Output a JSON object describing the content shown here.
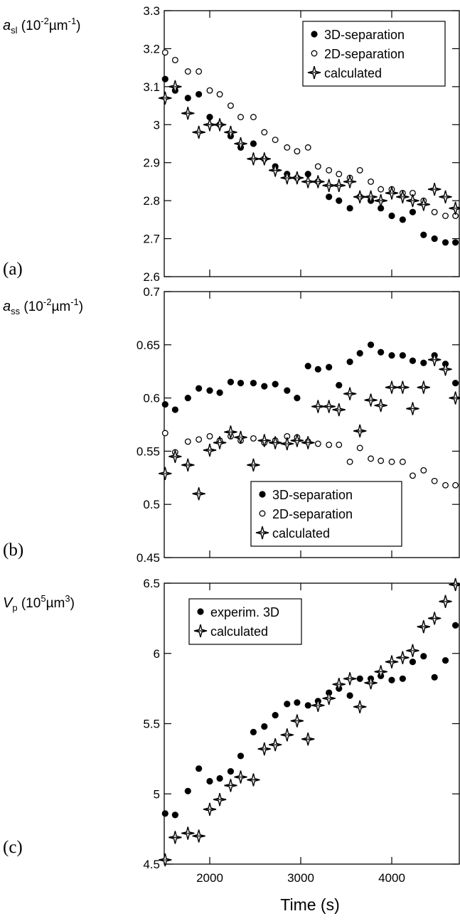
{
  "xlabel": "Time (s)",
  "x_ticks": [
    2000,
    3000,
    4000
  ],
  "xlim": [
    1500,
    4750
  ],
  "colors": {
    "ink": "#000000",
    "open_fill": "#ffffff"
  },
  "chart_data": [
    {
      "type": "scatter",
      "panel_label": "(a)",
      "ylabel": {
        "var": "a",
        "sub": "sl",
        "unit_pre": "(10",
        "unit_exp": "-2",
        "unit_post": "µm",
        "unit_exp2": "-1",
        "unit_close": ")"
      },
      "ylim": [
        2.6,
        3.3
      ],
      "y_ticks": [
        2.6,
        2.7,
        2.8,
        2.9,
        3,
        3.1,
        3.2,
        3.3
      ],
      "y_tick_labels": [
        "2.6",
        "2.7",
        "2.8",
        "2.9",
        "3",
        "3.1",
        "3.2",
        "3.3"
      ],
      "legend_position": "top-right",
      "series": [
        {
          "name": "3D-separation",
          "marker": "filled-circle",
          "x": [
            1510,
            1620,
            1760,
            1880,
            2000,
            2110,
            2230,
            2340,
            2480,
            2600,
            2720,
            2850,
            2960,
            3080,
            3190,
            3310,
            3420,
            3540,
            3650,
            3770,
            3880,
            4000,
            4120,
            4230,
            4350,
            4470,
            4590,
            4700
          ],
          "y": [
            3.12,
            3.09,
            3.07,
            3.08,
            3.02,
            3.0,
            2.97,
            2.94,
            2.95,
            2.91,
            2.89,
            2.87,
            2.86,
            2.87,
            2.85,
            2.81,
            2.8,
            2.78,
            2.81,
            2.8,
            2.78,
            2.76,
            2.75,
            2.77,
            2.71,
            2.7,
            2.69,
            2.69
          ]
        },
        {
          "name": "2D-separation",
          "marker": "open-circle",
          "x": [
            1510,
            1620,
            1760,
            1880,
            2000,
            2110,
            2230,
            2340,
            2480,
            2600,
            2720,
            2850,
            2960,
            3080,
            3190,
            3310,
            3420,
            3540,
            3650,
            3770,
            3880,
            4000,
            4120,
            4230,
            4350,
            4470,
            4590,
            4700
          ],
          "y": [
            3.19,
            3.17,
            3.14,
            3.14,
            3.09,
            3.08,
            3.05,
            3.02,
            3.02,
            2.98,
            2.96,
            2.94,
            2.93,
            2.94,
            2.89,
            2.88,
            2.87,
            2.86,
            2.88,
            2.85,
            2.83,
            2.83,
            2.82,
            2.82,
            2.8,
            2.77,
            2.76,
            2.76
          ]
        },
        {
          "name": "calculated",
          "marker": "star",
          "x": [
            1510,
            1620,
            1760,
            1880,
            2000,
            2110,
            2230,
            2340,
            2480,
            2600,
            2720,
            2850,
            2960,
            3080,
            3190,
            3310,
            3420,
            3540,
            3650,
            3770,
            3880,
            4000,
            4120,
            4230,
            4350,
            4470,
            4590,
            4700
          ],
          "y": [
            3.07,
            3.1,
            3.03,
            2.98,
            3.0,
            3.0,
            2.98,
            2.95,
            2.91,
            2.91,
            2.88,
            2.86,
            2.86,
            2.85,
            2.85,
            2.84,
            2.84,
            2.85,
            2.81,
            2.81,
            2.8,
            2.82,
            2.81,
            2.8,
            2.79,
            2.83,
            2.81,
            2.78
          ]
        }
      ]
    },
    {
      "type": "scatter",
      "panel_label": "(b)",
      "ylabel": {
        "var": "a",
        "sub": "ss",
        "unit_pre": "(10",
        "unit_exp": "-2",
        "unit_post": "µm",
        "unit_exp2": "-1",
        "unit_close": ")"
      },
      "ylim": [
        0.45,
        0.7
      ],
      "y_ticks": [
        0.45,
        0.5,
        0.55,
        0.6,
        0.65,
        0.7
      ],
      "y_tick_labels": [
        "0.45",
        "0.5",
        "0.55",
        "0.6",
        "0.65",
        "0.7"
      ],
      "legend_position": "bottom-right",
      "series": [
        {
          "name": "3D-separation",
          "marker": "filled-circle",
          "x": [
            1510,
            1620,
            1760,
            1880,
            2000,
            2110,
            2230,
            2340,
            2480,
            2600,
            2720,
            2850,
            2960,
            3080,
            3190,
            3310,
            3420,
            3540,
            3650,
            3770,
            3880,
            4000,
            4120,
            4230,
            4350,
            4470,
            4590,
            4700
          ],
          "y": [
            0.594,
            0.589,
            0.6,
            0.609,
            0.607,
            0.605,
            0.615,
            0.614,
            0.614,
            0.611,
            0.613,
            0.607,
            0.6,
            0.63,
            0.627,
            0.629,
            0.612,
            0.634,
            0.642,
            0.65,
            0.643,
            0.64,
            0.64,
            0.635,
            0.633,
            0.64,
            0.632,
            0.614
          ]
        },
        {
          "name": "2D-separation",
          "marker": "open-circle",
          "x": [
            1510,
            1620,
            1760,
            1880,
            2000,
            2110,
            2230,
            2340,
            2480,
            2600,
            2720,
            2850,
            2960,
            3080,
            3190,
            3310,
            3420,
            3540,
            3650,
            3770,
            3880,
            4000,
            4120,
            4230,
            4350,
            4470,
            4590,
            4700
          ],
          "y": [
            0.567,
            0.549,
            0.559,
            0.561,
            0.564,
            0.56,
            0.564,
            0.56,
            0.562,
            0.558,
            0.56,
            0.564,
            0.563,
            0.559,
            0.557,
            0.556,
            0.556,
            0.54,
            0.553,
            0.543,
            0.541,
            0.54,
            0.54,
            0.527,
            0.532,
            0.522,
            0.518,
            0.518
          ]
        },
        {
          "name": "calculated",
          "marker": "star",
          "x": [
            1510,
            1620,
            1760,
            1880,
            2000,
            2110,
            2230,
            2340,
            2480,
            2600,
            2720,
            2850,
            2960,
            3080,
            3190,
            3310,
            3420,
            3540,
            3650,
            3770,
            3880,
            4000,
            4120,
            4230,
            4350,
            4470,
            4590,
            4700
          ],
          "y": [
            0.529,
            0.545,
            0.537,
            0.51,
            0.551,
            0.558,
            0.568,
            0.563,
            0.537,
            0.56,
            0.558,
            0.557,
            0.56,
            0.558,
            0.592,
            0.592,
            0.589,
            0.604,
            0.569,
            0.598,
            0.593,
            0.61,
            0.61,
            0.59,
            0.61,
            0.636,
            0.627,
            0.6
          ]
        }
      ]
    },
    {
      "type": "scatter",
      "panel_label": "(c)",
      "ylabel": {
        "var": "V",
        "sub": "p",
        "unit_pre": "(10",
        "unit_exp": "5",
        "unit_post": "µm",
        "unit_exp2": "3",
        "unit_close": ")"
      },
      "ylim": [
        4.5,
        6.5
      ],
      "y_ticks": [
        4.5,
        5,
        5.5,
        6,
        6.5
      ],
      "y_tick_labels": [
        "4.5",
        "5",
        "5.5",
        "6",
        "6.5"
      ],
      "legend_position": "top-left",
      "series": [
        {
          "name": "experim. 3D",
          "marker": "filled-circle",
          "x": [
            1510,
            1620,
            1760,
            1880,
            2000,
            2110,
            2230,
            2340,
            2480,
            2600,
            2720,
            2850,
            2960,
            3080,
            3190,
            3310,
            3420,
            3540,
            3650,
            3770,
            3880,
            4000,
            4120,
            4230,
            4350,
            4470,
            4590,
            4700
          ],
          "y": [
            4.86,
            4.85,
            5.02,
            5.18,
            5.09,
            5.11,
            5.16,
            5.27,
            5.44,
            5.48,
            5.56,
            5.64,
            5.65,
            5.63,
            5.66,
            5.72,
            5.75,
            5.7,
            5.82,
            5.82,
            5.84,
            5.81,
            5.82,
            5.94,
            5.98,
            5.83,
            5.95,
            6.2
          ]
        },
        {
          "name": "calculated",
          "marker": "star",
          "x": [
            1510,
            1620,
            1760,
            1880,
            2000,
            2110,
            2230,
            2340,
            2480,
            2600,
            2720,
            2850,
            2960,
            3080,
            3190,
            3310,
            3420,
            3540,
            3650,
            3770,
            3880,
            4000,
            4120,
            4230,
            4350,
            4470,
            4590,
            4700
          ],
          "y": [
            4.53,
            4.69,
            4.72,
            4.7,
            4.89,
            4.96,
            5.06,
            5.12,
            5.1,
            5.32,
            5.35,
            5.42,
            5.52,
            5.39,
            5.63,
            5.68,
            5.78,
            5.82,
            5.62,
            5.79,
            5.87,
            5.94,
            5.97,
            6.02,
            6.19,
            6.25,
            6.37,
            6.49
          ]
        }
      ]
    }
  ]
}
